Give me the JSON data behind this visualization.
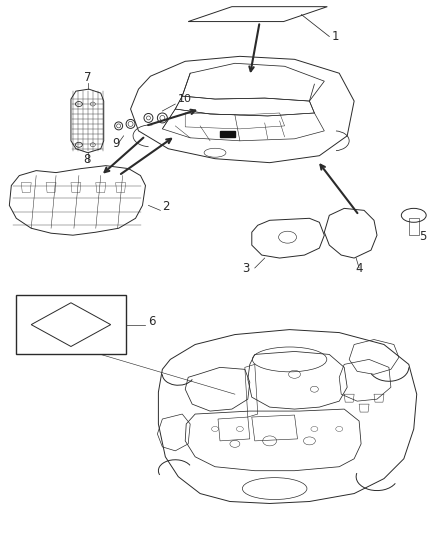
{
  "bg_color": "#ffffff",
  "line_color": "#2a2a2a",
  "label_color": "#000000",
  "figsize": [
    4.38,
    5.33
  ],
  "dpi": 100,
  "label_fontsize": 8.5
}
